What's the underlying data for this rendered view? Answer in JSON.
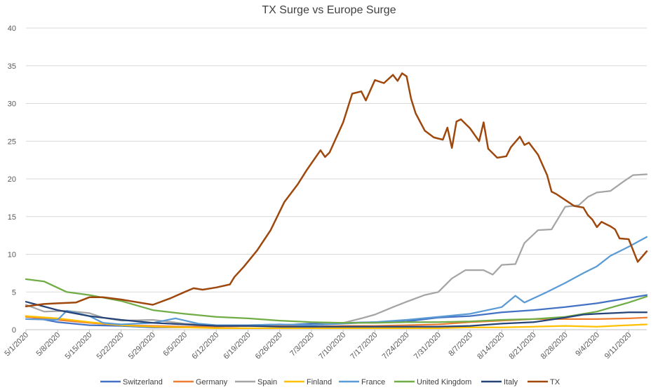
{
  "chart_data": {
    "type": "line",
    "title": "TX Surge vs Europe Surge",
    "xlabel": "",
    "ylabel": "",
    "ylim": [
      0,
      40
    ],
    "yticks": [
      0,
      5,
      10,
      15,
      20,
      25,
      30,
      35,
      40
    ],
    "x_start": "2020-05-01",
    "x_end": "2020-09-15",
    "x_tick_labels": [
      "5/1/2020",
      "5/8/2020",
      "5/15/2020",
      "5/22/2020",
      "5/29/2020",
      "6/5/2020",
      "6/12/2020",
      "6/19/2020",
      "6/26/2020",
      "7/3/2020",
      "7/10/2020",
      "7/17/2020",
      "7/24/2020",
      "7/31/2020",
      "8/7/2020",
      "8/14/2020",
      "8/21/2020",
      "8/28/2020",
      "9/4/2020",
      "9/11/2020"
    ],
    "grid": true,
    "legend_position": "bottom",
    "series": [
      {
        "name": "Switzerland",
        "color": "#4472C4",
        "points": [
          [
            "5/1/2020",
            1.8
          ],
          [
            "5/8/2020",
            1.0
          ],
          [
            "5/15/2020",
            0.6
          ],
          [
            "5/22/2020",
            0.5
          ],
          [
            "5/29/2020",
            0.3
          ],
          [
            "6/5/2020",
            0.3
          ],
          [
            "6/12/2020",
            0.4
          ],
          [
            "6/19/2020",
            0.5
          ],
          [
            "6/26/2020",
            0.6
          ],
          [
            "7/3/2020",
            0.8
          ],
          [
            "7/10/2020",
            0.9
          ],
          [
            "7/17/2020",
            1.0
          ],
          [
            "7/24/2020",
            1.1
          ],
          [
            "7/31/2020",
            1.6
          ],
          [
            "8/7/2020",
            1.8
          ],
          [
            "8/14/2020",
            2.3
          ],
          [
            "8/21/2020",
            2.6
          ],
          [
            "8/28/2020",
            3.0
          ],
          [
            "9/4/2020",
            3.5
          ],
          [
            "9/11/2020",
            4.2
          ],
          [
            "9/15/2020",
            4.6
          ]
        ]
      },
      {
        "name": "Germany",
        "color": "#ED7D31",
        "points": [
          [
            "5/1/2020",
            1.7
          ],
          [
            "5/8/2020",
            1.3
          ],
          [
            "5/15/2020",
            0.9
          ],
          [
            "5/22/2020",
            0.6
          ],
          [
            "5/29/2020",
            0.5
          ],
          [
            "6/5/2020",
            0.4
          ],
          [
            "6/12/2020",
            0.4
          ],
          [
            "6/19/2020",
            0.5
          ],
          [
            "6/26/2020",
            0.5
          ],
          [
            "7/3/2020",
            0.4
          ],
          [
            "7/10/2020",
            0.5
          ],
          [
            "7/17/2020",
            0.5
          ],
          [
            "7/24/2020",
            0.6
          ],
          [
            "7/31/2020",
            0.7
          ],
          [
            "8/7/2020",
            1.0
          ],
          [
            "8/14/2020",
            1.2
          ],
          [
            "8/21/2020",
            1.4
          ],
          [
            "8/28/2020",
            1.4
          ],
          [
            "9/4/2020",
            1.4
          ],
          [
            "9/11/2020",
            1.5
          ],
          [
            "9/15/2020",
            1.6
          ]
        ]
      },
      {
        "name": "Spain",
        "color": "#A5A5A5",
        "points": [
          [
            "5/1/2020",
            3.3
          ],
          [
            "5/5/2020",
            2.4
          ],
          [
            "5/10/2020",
            2.5
          ],
          [
            "5/15/2020",
            2.2
          ],
          [
            "5/18/2020",
            1.6
          ],
          [
            "5/22/2020",
            1.2
          ],
          [
            "5/29/2020",
            1.3
          ],
          [
            "6/5/2020",
            0.8
          ],
          [
            "6/12/2020",
            0.6
          ],
          [
            "6/19/2020",
            0.6
          ],
          [
            "6/26/2020",
            0.7
          ],
          [
            "7/3/2020",
            0.6
          ],
          [
            "7/10/2020",
            0.9
          ],
          [
            "7/14/2020",
            1.5
          ],
          [
            "7/17/2020",
            2.0
          ],
          [
            "7/21/2020",
            3.0
          ],
          [
            "7/24/2020",
            3.7
          ],
          [
            "7/28/2020",
            4.6
          ],
          [
            "7/31/2020",
            5.0
          ],
          [
            "8/3/2020",
            6.8
          ],
          [
            "8/6/2020",
            7.9
          ],
          [
            "8/10/2020",
            7.9
          ],
          [
            "8/12/2020",
            7.3
          ],
          [
            "8/14/2020",
            8.6
          ],
          [
            "8/17/2020",
            8.7
          ],
          [
            "8/19/2020",
            11.5
          ],
          [
            "8/22/2020",
            13.2
          ],
          [
            "8/25/2020",
            13.3
          ],
          [
            "8/28/2020",
            16.3
          ],
          [
            "8/31/2020",
            16.5
          ],
          [
            "9/2/2020",
            17.6
          ],
          [
            "9/4/2020",
            18.2
          ],
          [
            "9/7/2020",
            18.4
          ],
          [
            "9/10/2020",
            19.7
          ],
          [
            "9/12/2020",
            20.5
          ],
          [
            "9/15/2020",
            20.6
          ]
        ]
      },
      {
        "name": "Finland",
        "color": "#FFC000",
        "points": [
          [
            "5/1/2020",
            1.8
          ],
          [
            "5/8/2020",
            1.5
          ],
          [
            "5/15/2020",
            1.0
          ],
          [
            "5/22/2020",
            0.6
          ],
          [
            "5/29/2020",
            0.4
          ],
          [
            "6/5/2020",
            0.3
          ],
          [
            "6/12/2020",
            0.2
          ],
          [
            "6/19/2020",
            0.2
          ],
          [
            "6/26/2020",
            0.2
          ],
          [
            "7/3/2020",
            0.2
          ],
          [
            "7/10/2020",
            0.2
          ],
          [
            "7/17/2020",
            0.2
          ],
          [
            "7/24/2020",
            0.2
          ],
          [
            "7/31/2020",
            0.2
          ],
          [
            "8/7/2020",
            0.3
          ],
          [
            "8/14/2020",
            0.3
          ],
          [
            "8/21/2020",
            0.4
          ],
          [
            "8/28/2020",
            0.5
          ],
          [
            "9/4/2020",
            0.4
          ],
          [
            "9/11/2020",
            0.6
          ],
          [
            "9/15/2020",
            0.7
          ]
        ]
      },
      {
        "name": "France",
        "color": "#5B9BD5",
        "points": [
          [
            "5/1/2020",
            1.4
          ],
          [
            "5/8/2020",
            1.3
          ],
          [
            "5/10/2020",
            2.5
          ],
          [
            "5/15/2020",
            1.8
          ],
          [
            "5/18/2020",
            0.9
          ],
          [
            "5/22/2020",
            0.7
          ],
          [
            "5/29/2020",
            0.9
          ],
          [
            "6/3/2020",
            1.5
          ],
          [
            "6/8/2020",
            0.8
          ],
          [
            "6/12/2020",
            0.6
          ],
          [
            "6/19/2020",
            0.6
          ],
          [
            "6/26/2020",
            0.7
          ],
          [
            "7/3/2020",
            0.6
          ],
          [
            "7/10/2020",
            0.8
          ],
          [
            "7/17/2020",
            1.0
          ],
          [
            "7/24/2020",
            1.3
          ],
          [
            "7/31/2020",
            1.7
          ],
          [
            "8/7/2020",
            2.1
          ],
          [
            "8/14/2020",
            3.0
          ],
          [
            "8/17/2020",
            4.5
          ],
          [
            "8/19/2020",
            3.6
          ],
          [
            "8/24/2020",
            5.0
          ],
          [
            "8/28/2020",
            6.2
          ],
          [
            "9/1/2020",
            7.5
          ],
          [
            "9/4/2020",
            8.4
          ],
          [
            "9/7/2020",
            9.8
          ],
          [
            "9/11/2020",
            11.0
          ],
          [
            "9/15/2020",
            12.3
          ]
        ]
      },
      {
        "name": "United Kingdom",
        "color": "#70AD47",
        "points": [
          [
            "5/1/2020",
            6.7
          ],
          [
            "5/5/2020",
            6.4
          ],
          [
            "5/10/2020",
            5.0
          ],
          [
            "5/15/2020",
            4.6
          ],
          [
            "5/22/2020",
            3.8
          ],
          [
            "5/29/2020",
            2.6
          ],
          [
            "6/5/2020",
            2.1
          ],
          [
            "6/12/2020",
            1.7
          ],
          [
            "6/19/2020",
            1.5
          ],
          [
            "6/26/2020",
            1.2
          ],
          [
            "7/3/2020",
            1.0
          ],
          [
            "7/10/2020",
            0.9
          ],
          [
            "7/17/2020",
            0.9
          ],
          [
            "7/24/2020",
            1.0
          ],
          [
            "7/31/2020",
            1.0
          ],
          [
            "8/7/2020",
            1.1
          ],
          [
            "8/14/2020",
            1.3
          ],
          [
            "8/21/2020",
            1.4
          ],
          [
            "8/28/2020",
            1.7
          ],
          [
            "9/4/2020",
            2.4
          ],
          [
            "9/11/2020",
            3.6
          ],
          [
            "9/15/2020",
            4.4
          ]
        ]
      },
      {
        "name": "Italy",
        "color": "#264478",
        "points": [
          [
            "5/1/2020",
            3.7
          ],
          [
            "5/8/2020",
            2.6
          ],
          [
            "5/15/2020",
            1.8
          ],
          [
            "5/22/2020",
            1.3
          ],
          [
            "5/29/2020",
            0.9
          ],
          [
            "6/5/2020",
            0.7
          ],
          [
            "6/12/2020",
            0.5
          ],
          [
            "6/19/2020",
            0.5
          ],
          [
            "6/26/2020",
            0.4
          ],
          [
            "7/3/2020",
            0.4
          ],
          [
            "7/10/2020",
            0.4
          ],
          [
            "7/17/2020",
            0.4
          ],
          [
            "7/24/2020",
            0.4
          ],
          [
            "7/31/2020",
            0.4
          ],
          [
            "8/7/2020",
            0.5
          ],
          [
            "8/14/2020",
            0.8
          ],
          [
            "8/21/2020",
            1.0
          ],
          [
            "8/28/2020",
            1.6
          ],
          [
            "9/1/2020",
            2.0
          ],
          [
            "9/4/2020",
            2.1
          ],
          [
            "9/11/2020",
            2.3
          ],
          [
            "9/15/2020",
            2.3
          ]
        ]
      },
      {
        "name": "TX",
        "color": "#9E480E",
        "points": [
          [
            "5/1/2020",
            3.1
          ],
          [
            "5/5/2020",
            3.4
          ],
          [
            "5/8/2020",
            3.5
          ],
          [
            "5/12/2020",
            3.6
          ],
          [
            "5/15/2020",
            4.3
          ],
          [
            "5/18/2020",
            4.3
          ],
          [
            "5/22/2020",
            4.0
          ],
          [
            "5/26/2020",
            3.6
          ],
          [
            "5/29/2020",
            3.3
          ],
          [
            "6/2/2020",
            4.2
          ],
          [
            "6/5/2020",
            5.0
          ],
          [
            "6/7/2020",
            5.5
          ],
          [
            "6/9/2020",
            5.3
          ],
          [
            "6/12/2020",
            5.6
          ],
          [
            "6/15/2020",
            6.0
          ],
          [
            "6/16/2020",
            7.0
          ],
          [
            "6/18/2020",
            8.3
          ],
          [
            "6/21/2020",
            10.5
          ],
          [
            "6/24/2020",
            13.2
          ],
          [
            "6/27/2020",
            16.9
          ],
          [
            "6/30/2020",
            19.3
          ],
          [
            "7/2/2020",
            21.2
          ],
          [
            "7/5/2020",
            23.8
          ],
          [
            "7/6/2020",
            22.9
          ],
          [
            "7/7/2020",
            23.5
          ],
          [
            "7/10/2020",
            27.5
          ],
          [
            "7/12/2020",
            31.3
          ],
          [
            "7/14/2020",
            31.6
          ],
          [
            "7/15/2020",
            30.4
          ],
          [
            "7/17/2020",
            33.1
          ],
          [
            "7/19/2020",
            32.7
          ],
          [
            "7/21/2020",
            33.8
          ],
          [
            "7/22/2020",
            33.0
          ],
          [
            "7/23/2020",
            34.0
          ],
          [
            "7/24/2020",
            33.6
          ],
          [
            "7/25/2020",
            30.6
          ],
          [
            "7/26/2020",
            28.7
          ],
          [
            "7/28/2020",
            26.4
          ],
          [
            "7/30/2020",
            25.5
          ],
          [
            "8/1/2020",
            25.2
          ],
          [
            "8/2/2020",
            26.8
          ],
          [
            "8/3/2020",
            24.1
          ],
          [
            "8/4/2020",
            27.6
          ],
          [
            "8/5/2020",
            27.9
          ],
          [
            "8/7/2020",
            26.7
          ],
          [
            "8/9/2020",
            25.0
          ],
          [
            "8/10/2020",
            27.5
          ],
          [
            "8/11/2020",
            24.0
          ],
          [
            "8/13/2020",
            22.8
          ],
          [
            "8/15/2020",
            23.0
          ],
          [
            "8/16/2020",
            24.2
          ],
          [
            "8/18/2020",
            25.6
          ],
          [
            "8/19/2020",
            24.5
          ],
          [
            "8/20/2020",
            24.8
          ],
          [
            "8/22/2020",
            23.2
          ],
          [
            "8/24/2020",
            20.5
          ],
          [
            "8/25/2020",
            18.3
          ],
          [
            "8/26/2020",
            18.0
          ],
          [
            "8/28/2020",
            17.2
          ],
          [
            "8/30/2020",
            16.4
          ],
          [
            "9/1/2020",
            16.2
          ],
          [
            "9/2/2020",
            15.2
          ],
          [
            "9/3/2020",
            14.6
          ],
          [
            "9/4/2020",
            13.6
          ],
          [
            "9/5/2020",
            14.3
          ],
          [
            "9/7/2020",
            13.7
          ],
          [
            "9/8/2020",
            13.3
          ],
          [
            "9/9/2020",
            12.1
          ],
          [
            "9/11/2020",
            12.0
          ],
          [
            "9/13/2020",
            9.0
          ],
          [
            "9/15/2020",
            10.4
          ]
        ]
      }
    ]
  }
}
